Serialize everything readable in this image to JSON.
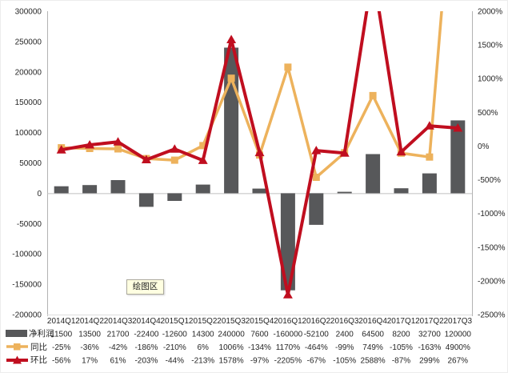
{
  "tooltip": {
    "label": "绘图区"
  },
  "colors": {
    "bar": "#57585A",
    "yoy_line": "#EDB25C",
    "qoq_line": "#C00E1F",
    "axis_line": "#B3B3B3",
    "zero_line": "#BFBFBF",
    "plot_bottom_line": "#DDDDDD",
    "text": "#262626",
    "tooltip_bg": "#FFFFE1"
  },
  "chart_data": {
    "type": "combo",
    "title": "",
    "grid": false,
    "legend_position": "table-left",
    "categories": [
      "2014Q1",
      "2014Q2",
      "2014Q3",
      "2014Q4",
      "2015Q1",
      "2015Q2",
      "2015Q3",
      "2015Q4",
      "2016Q1",
      "2016Q2",
      "2016Q3",
      "2016Q4",
      "2017Q1",
      "2017Q2",
      "2017Q3"
    ],
    "left_axis": {
      "min": -200000,
      "max": 300000,
      "step": 50000
    },
    "right_axis": {
      "min": -2500,
      "max": 2000,
      "step": 500,
      "suffix": "%"
    },
    "series": [
      {
        "name": "净利润",
        "type": "bar",
        "axis": "left",
        "color": "#57585A",
        "marker": "rect",
        "values": [
          11500,
          13500,
          21700,
          -22400,
          -12600,
          14300,
          240000,
          7600,
          -160000,
          -52100,
          2400,
          64500,
          8200,
          32700,
          120000
        ],
        "display": [
          "11500",
          "13500",
          "21700",
          "-22400",
          "-12600",
          "14300",
          "240000",
          "7600",
          "-160000",
          "-52100",
          "2400",
          "64500",
          "8200",
          "32700",
          "120000"
        ]
      },
      {
        "name": "同比",
        "type": "line",
        "axis": "right",
        "color": "#EDB25C",
        "marker": "square",
        "values": [
          -25,
          -36,
          -42,
          -186,
          -210,
          6,
          1006,
          -134,
          1170,
          -464,
          -99,
          749,
          -105,
          -163,
          4900
        ],
        "display": [
          "-25%",
          "-36%",
          "-42%",
          "-186%",
          "-210%",
          "6%",
          "1006%",
          "-134%",
          "1170%",
          "-464%",
          "-99%",
          "749%",
          "-105%",
          "-163%",
          "4900%"
        ]
      },
      {
        "name": "环比",
        "type": "line",
        "axis": "right",
        "color": "#C00E1F",
        "marker": "triangle",
        "values": [
          -56,
          17,
          61,
          -203,
          -44,
          -213,
          1578,
          -97,
          -2205,
          -67,
          -105,
          2588,
          -87,
          299,
          267
        ],
        "display": [
          "-56%",
          "17%",
          "61%",
          "-203%",
          "-44%",
          "-213%",
          "1578%",
          "-97%",
          "-2205%",
          "-67%",
          "-105%",
          "2588%",
          "-87%",
          "299%",
          "267%"
        ]
      }
    ]
  }
}
